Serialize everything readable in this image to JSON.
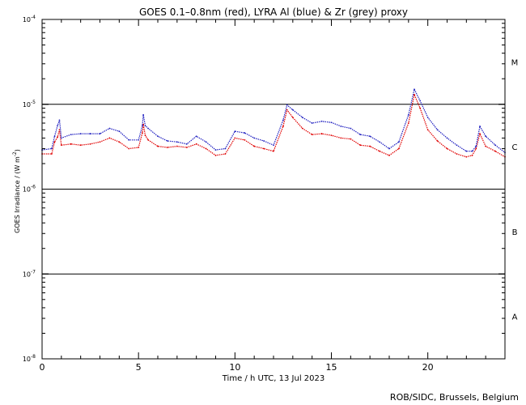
{
  "chart_data": {
    "type": "line",
    "title": "GOES 0.1–0.8nm (red), LYRA Al (blue) & Zr (grey) proxy",
    "xlabel": "Time / h UTC, 13 Jul 2023",
    "ylabel": "GOES Irradiance / (W m",
    "ylabel_sup": "-2",
    "ylabel_close": ")",
    "xlim": [
      0,
      24
    ],
    "ylim": [
      1e-08,
      0.0001
    ],
    "yscale": "log",
    "x_ticks": [
      {
        "value": 0,
        "label": "0"
      },
      {
        "value": 5,
        "label": "5"
      },
      {
        "value": 10,
        "label": "10"
      },
      {
        "value": 15,
        "label": "15"
      },
      {
        "value": 20,
        "label": "20"
      }
    ],
    "y_ticks": [
      {
        "value": 0.0001,
        "base": "10",
        "exp": "-4"
      },
      {
        "value": 1e-05,
        "base": "10",
        "exp": "-5"
      },
      {
        "value": 1e-06,
        "base": "10",
        "exp": "-6"
      },
      {
        "value": 1e-07,
        "base": "10",
        "exp": "-7"
      },
      {
        "value": 1e-08,
        "base": "10",
        "exp": "-8"
      }
    ],
    "flare_classes": [
      {
        "label": "M",
        "center": 3.16e-05
      },
      {
        "label": "C",
        "center": 3.16e-06
      },
      {
        "label": "B",
        "center": 3.16e-07
      },
      {
        "label": "A",
        "center": 3.16e-08
      }
    ],
    "threshold_lines": [
      1e-05,
      1e-06,
      1e-07
    ],
    "credit": "ROB/SIDC, Brussels, Belgium",
    "series": [
      {
        "color": "#e00000",
        "x": [
          0.0,
          0.5,
          0.65,
          0.8,
          0.9,
          1.0,
          1.5,
          2.0,
          2.5,
          3.0,
          3.5,
          4.0,
          4.5,
          5.0,
          5.2,
          5.25,
          5.35,
          5.5,
          6.0,
          6.5,
          7.0,
          7.5,
          8.0,
          8.5,
          9.0,
          9.5,
          10.0,
          10.5,
          11.0,
          11.5,
          12.0,
          12.5,
          12.7,
          13.0,
          13.5,
          14.0,
          14.5,
          15.0,
          15.5,
          16.0,
          16.5,
          17.0,
          17.5,
          18.0,
          18.5,
          19.0,
          19.3,
          19.6,
          20.0,
          20.5,
          21.0,
          21.5,
          22.0,
          22.3,
          22.5,
          22.7,
          23.0,
          23.5,
          24.0
        ],
        "y": [
          2.6e-06,
          2.6e-06,
          3.6e-06,
          4.1e-06,
          5e-06,
          3.3e-06,
          3.4e-06,
          3.3e-06,
          3.4e-06,
          3.6e-06,
          4e-06,
          3.6e-06,
          3e-06,
          3.1e-06,
          4.6e-06,
          5.8e-06,
          4.3e-06,
          3.8e-06,
          3.2e-06,
          3.1e-06,
          3.2e-06,
          3.1e-06,
          3.4e-06,
          3e-06,
          2.5e-06,
          2.6e-06,
          4e-06,
          3.8e-06,
          3.2e-06,
          3e-06,
          2.8e-06,
          5.5e-06,
          8.6e-06,
          7e-06,
          5.2e-06,
          4.4e-06,
          4.5e-06,
          4.3e-06,
          4e-06,
          3.9e-06,
          3.3e-06,
          3.2e-06,
          2.8e-06,
          2.5e-06,
          3e-06,
          6e-06,
          1.3e-05,
          9e-06,
          5e-06,
          3.7e-06,
          3e-06,
          2.6e-06,
          2.4e-06,
          2.5e-06,
          3e-06,
          4.5e-06,
          3.2e-06,
          2.8e-06,
          2.4e-06
        ]
      },
      {
        "color": "#2020c0",
        "x": [
          0.0,
          0.5,
          0.65,
          0.8,
          0.9,
          1.0,
          1.5,
          2.0,
          2.5,
          3.0,
          3.5,
          4.0,
          4.5,
          5.0,
          5.2,
          5.25,
          5.35,
          5.5,
          6.0,
          6.5,
          7.0,
          7.5,
          8.0,
          8.5,
          9.0,
          9.5,
          10.0,
          10.5,
          11.0,
          11.5,
          12.0,
          12.5,
          12.7,
          13.0,
          13.5,
          14.0,
          14.5,
          15.0,
          15.5,
          16.0,
          16.5,
          17.0,
          17.5,
          18.0,
          18.5,
          19.0,
          19.3,
          19.6,
          20.0,
          20.5,
          21.0,
          21.5,
          22.0,
          22.3,
          22.5,
          22.7,
          23.0,
          23.5,
          24.0
        ],
        "y": [
          2.9e-06,
          3e-06,
          4.2e-06,
          5.6e-06,
          6.5e-06,
          4e-06,
          4.4e-06,
          4.5e-06,
          4.5e-06,
          4.5e-06,
          5.2e-06,
          4.8e-06,
          3.8e-06,
          3.8e-06,
          5.6e-06,
          7.5e-06,
          5.6e-06,
          5.2e-06,
          4.2e-06,
          3.7e-06,
          3.6e-06,
          3.4e-06,
          4.2e-06,
          3.6e-06,
          2.9e-06,
          3e-06,
          4.8e-06,
          4.6e-06,
          4e-06,
          3.7e-06,
          3.3e-06,
          6.5e-06,
          9.8e-06,
          8.6e-06,
          7e-06,
          6e-06,
          6.3e-06,
          6.1e-06,
          5.5e-06,
          5.2e-06,
          4.4e-06,
          4.2e-06,
          3.6e-06,
          3e-06,
          3.6e-06,
          7.5e-06,
          1.5e-05,
          1.1e-05,
          7e-06,
          5e-06,
          4e-06,
          3.3e-06,
          2.8e-06,
          2.8e-06,
          3.2e-06,
          5.5e-06,
          4.2e-06,
          3.3e-06,
          2.7e-06
        ]
      }
    ]
  }
}
